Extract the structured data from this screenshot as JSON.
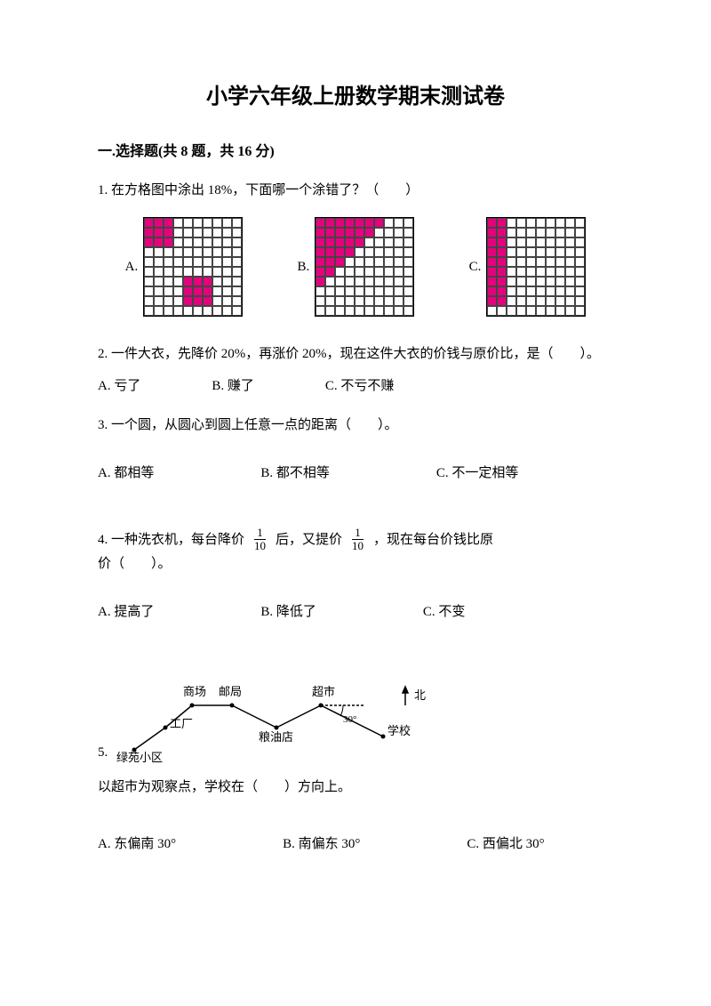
{
  "title": "小学六年级上册数学期末测试卷",
  "section": "一.选择题(共 8 题，共 16 分)",
  "q1": {
    "text": "1. 在方格图中涂出 18%，下面哪一个涂错了？（　　）",
    "grids": {
      "rows": 10,
      "cols": 10,
      "cell_size": 11,
      "fill_color": "#e6007e",
      "border_color": "#000000",
      "A": {
        "label": "A.",
        "filled": [
          [
            0,
            0
          ],
          [
            0,
            1
          ],
          [
            0,
            2
          ],
          [
            1,
            0
          ],
          [
            1,
            1
          ],
          [
            1,
            2
          ],
          [
            2,
            0
          ],
          [
            2,
            1
          ],
          [
            2,
            2
          ],
          [
            6,
            4
          ],
          [
            6,
            5
          ],
          [
            6,
            6
          ],
          [
            7,
            4
          ],
          [
            7,
            5
          ],
          [
            7,
            6
          ],
          [
            8,
            4
          ],
          [
            8,
            5
          ],
          [
            8,
            6
          ]
        ]
      },
      "B": {
        "label": "B.",
        "filled": [
          [
            0,
            0
          ],
          [
            0,
            1
          ],
          [
            0,
            2
          ],
          [
            0,
            3
          ],
          [
            0,
            4
          ],
          [
            0,
            5
          ],
          [
            0,
            6
          ],
          [
            1,
            0
          ],
          [
            1,
            1
          ],
          [
            1,
            2
          ],
          [
            1,
            3
          ],
          [
            1,
            4
          ],
          [
            1,
            5
          ],
          [
            2,
            0
          ],
          [
            2,
            1
          ],
          [
            2,
            2
          ],
          [
            2,
            3
          ],
          [
            2,
            4
          ],
          [
            3,
            0
          ],
          [
            3,
            1
          ],
          [
            3,
            2
          ],
          [
            3,
            3
          ],
          [
            4,
            0
          ],
          [
            4,
            1
          ],
          [
            4,
            2
          ],
          [
            5,
            0
          ],
          [
            5,
            1
          ],
          [
            6,
            0
          ]
        ]
      },
      "C": {
        "label": "C.",
        "filled": [
          [
            0,
            0
          ],
          [
            0,
            1
          ],
          [
            1,
            0
          ],
          [
            1,
            1
          ],
          [
            2,
            0
          ],
          [
            2,
            1
          ],
          [
            3,
            0
          ],
          [
            3,
            1
          ],
          [
            4,
            0
          ],
          [
            4,
            1
          ],
          [
            5,
            0
          ],
          [
            5,
            1
          ],
          [
            6,
            0
          ],
          [
            6,
            1
          ],
          [
            7,
            0
          ],
          [
            7,
            1
          ],
          [
            8,
            0
          ],
          [
            8,
            1
          ]
        ]
      }
    }
  },
  "q2": {
    "text": "2. 一件大衣，先降价 20%，再涨价 20%，现在这件大衣的价钱与原价比，是（　　）。",
    "options": {
      "A": "A. 亏了",
      "B": "B. 赚了",
      "C": "C. 不亏不赚"
    }
  },
  "q3": {
    "text": "3. 一个圆，从圆心到圆上任意一点的距离（　　）。",
    "options": {
      "A": "A. 都相等",
      "B": "B. 都不相等",
      "C": "C. 不一定相等"
    }
  },
  "q4": {
    "prefix": "4. 一种洗衣机，每台降价",
    "frac1": {
      "num": "1",
      "den": "10"
    },
    "mid": "后，又提价",
    "frac2": {
      "num": "1",
      "den": "10"
    },
    "suffix": "，现在每台价钱比原",
    "line2": "价（　　）。",
    "options": {
      "A": "A. 提高了",
      "B": "B. 降低了",
      "C": "C. 不变"
    }
  },
  "q5": {
    "num": "5.",
    "map": {
      "labels": {
        "shangchang": "商场",
        "youju": "邮局",
        "chaoshi": "超市",
        "gongchang": "工厂",
        "liangyou": "粮油店",
        "xuexiao": "学校",
        "lvyuan": "绿苑小区",
        "bei": "北",
        "angle": "30°"
      },
      "colors": {
        "line": "#000000",
        "text": "#000000"
      }
    },
    "text": "以超市为观察点，学校在（　　）方向上。",
    "options": {
      "A": "A. 东偏南 30°",
      "B": "B. 南偏东 30°",
      "C": "C. 西偏北 30°"
    }
  }
}
